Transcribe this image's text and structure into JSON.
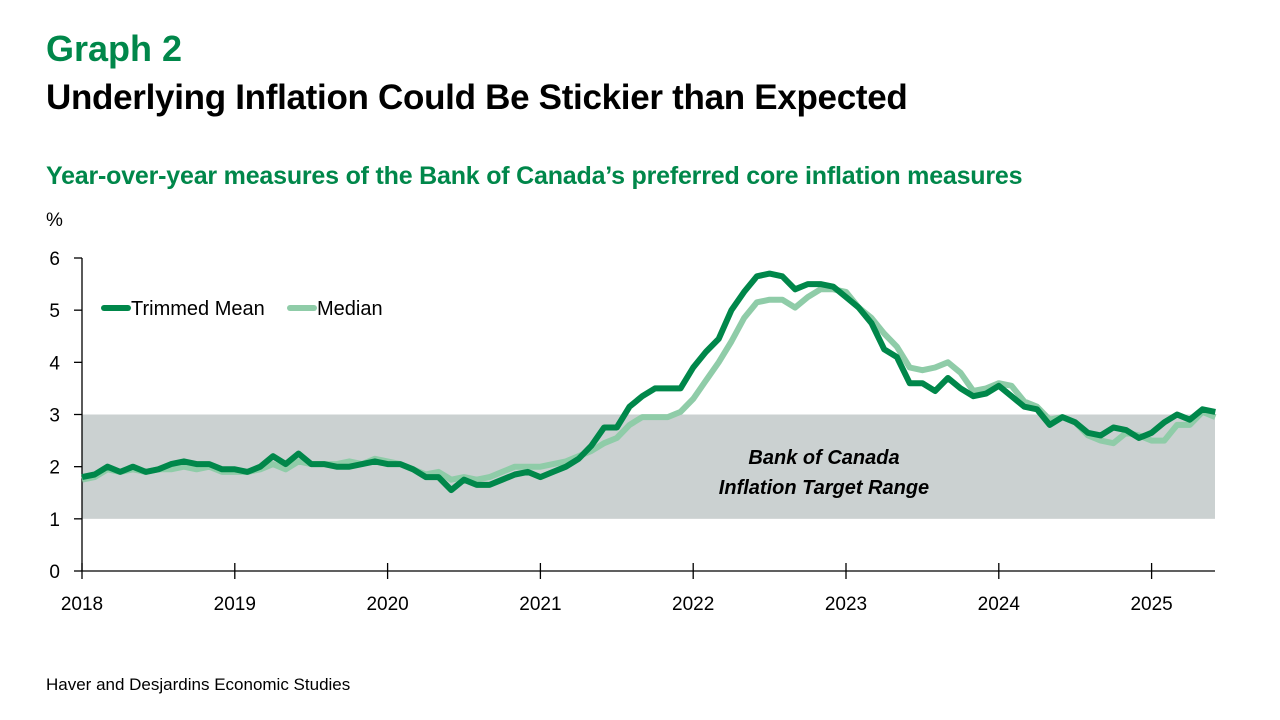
{
  "header": {
    "graph_label": "Graph 2",
    "title": "Underlying Inflation Could Be Stickier than Expected",
    "subtitle": "Year-over-year measures of the Bank of Canada’s preferred core inflation measures"
  },
  "source": "Haver and Desjardins Economic Studies",
  "colors": {
    "trimmed_mean": "#00874a",
    "median": "#8fcca8",
    "target_band": "#cbd1d1",
    "accent": "#00874a"
  },
  "chart_data": {
    "type": "line",
    "title": "Underlying Inflation Could Be Stickier than Expected",
    "subtitle": "Year-over-year measures of the Bank of Canada’s preferred core inflation measures",
    "ylabel": "%",
    "xlabel": "",
    "ylim": [
      0,
      6
    ],
    "yticks": [
      "0",
      "1",
      "2",
      "3",
      "4",
      "5",
      "6"
    ],
    "xticks": [
      "2018",
      "2019",
      "2020",
      "2021",
      "2022",
      "2023",
      "2024",
      "2025"
    ],
    "x_start": "2018-01",
    "x_end": "2025-06",
    "frequency": "monthly",
    "grid": false,
    "legend_position": "top-left",
    "annotation": {
      "line1": "Bank of Canada",
      "line2": "Inflation Target Range",
      "band_low": 1,
      "band_high": 3
    },
    "series": [
      {
        "name": "Trimmed Mean",
        "values": [
          1.8,
          1.85,
          2.0,
          1.9,
          2.0,
          1.9,
          1.95,
          2.05,
          2.1,
          2.05,
          2.05,
          1.95,
          1.95,
          1.9,
          2.0,
          2.2,
          2.05,
          2.25,
          2.05,
          2.05,
          2.0,
          2.0,
          2.05,
          2.1,
          2.05,
          2.05,
          1.95,
          1.8,
          1.8,
          1.55,
          1.75,
          1.65,
          1.65,
          1.75,
          1.85,
          1.9,
          1.8,
          1.9,
          2.0,
          2.15,
          2.4,
          2.75,
          2.75,
          3.15,
          3.35,
          3.5,
          3.5,
          3.5,
          3.9,
          4.2,
          4.45,
          5.0,
          5.35,
          5.65,
          5.7,
          5.65,
          5.4,
          5.5,
          5.5,
          5.45,
          5.25,
          5.05,
          4.75,
          4.25,
          4.1,
          3.6,
          3.6,
          3.45,
          3.7,
          3.5,
          3.35,
          3.4,
          3.55,
          3.35,
          3.15,
          3.1,
          2.8,
          2.95,
          2.85,
          2.65,
          2.6,
          2.75,
          2.7,
          2.55,
          2.65,
          2.85,
          3.0,
          2.9,
          3.1,
          3.05
        ]
      },
      {
        "name": "Median",
        "values": [
          1.75,
          1.8,
          1.95,
          1.9,
          1.95,
          1.9,
          1.95,
          1.95,
          2.0,
          1.95,
          2.0,
          1.9,
          1.9,
          1.9,
          1.95,
          2.05,
          1.95,
          2.1,
          2.05,
          2.05,
          2.05,
          2.1,
          2.05,
          2.15,
          2.1,
          2.05,
          1.95,
          1.85,
          1.9,
          1.75,
          1.8,
          1.75,
          1.8,
          1.9,
          2.0,
          2.0,
          2.0,
          2.05,
          2.1,
          2.2,
          2.3,
          2.45,
          2.55,
          2.8,
          2.95,
          2.95,
          2.95,
          3.05,
          3.3,
          3.65,
          4.0,
          4.4,
          4.85,
          5.15,
          5.2,
          5.2,
          5.05,
          5.25,
          5.4,
          5.4,
          5.35,
          5.05,
          4.85,
          4.55,
          4.3,
          3.9,
          3.85,
          3.9,
          4.0,
          3.8,
          3.45,
          3.5,
          3.6,
          3.55,
          3.25,
          3.15,
          2.9,
          2.95,
          2.85,
          2.6,
          2.5,
          2.45,
          2.65,
          2.6,
          2.5,
          2.5,
          2.8,
          2.8,
          3.05,
          2.95
        ]
      }
    ]
  }
}
